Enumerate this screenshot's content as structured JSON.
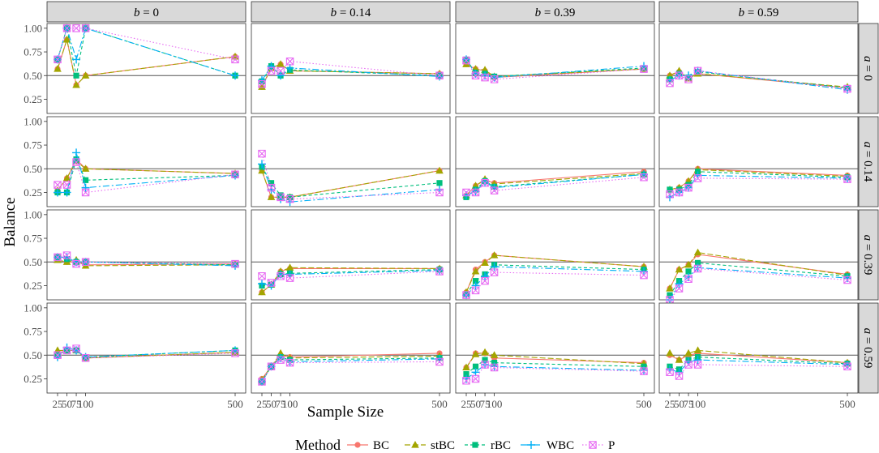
{
  "chart_data": {
    "type": "line",
    "title": "",
    "xlabel": "Sample Size",
    "ylabel": "Balance",
    "x": [
      25,
      50,
      75,
      100,
      500
    ],
    "x_tick_labels": [
      "25",
      "50",
      "75",
      "100",
      "500"
    ],
    "ylim": [
      0.1,
      1.05
    ],
    "y_ticks": [
      0.25,
      0.5,
      0.75,
      1.0
    ],
    "y_tick_labels": [
      "0.25",
      "0.50",
      "0.75",
      "1.00"
    ],
    "reference_line": 0.5,
    "grid": false,
    "col_facet_var": "b",
    "row_facet_var": "a",
    "col_labels": [
      "b = 0",
      "b = 0.14",
      "b = 0.39",
      "b = 0.59"
    ],
    "row_labels": [
      "a = 0",
      "a = 0.14",
      "a = 0.39",
      "a = 0.59"
    ],
    "legend": {
      "title": "Method",
      "position": "bottom",
      "entries": [
        "BC",
        "stBC",
        "rBC",
        "WBC",
        "P"
      ]
    },
    "methods": [
      {
        "name": "BC",
        "color": "#F8766D",
        "shape": "circle",
        "dash": ""
      },
      {
        "name": "stBC",
        "color": "#A3A500",
        "shape": "triangle",
        "dash": "7,3"
      },
      {
        "name": "rBC",
        "color": "#00BF7D",
        "shape": "square",
        "dash": "4,3"
      },
      {
        "name": "WBC",
        "color": "#00B0F6",
        "shape": "plus",
        "dash": "8,3,2,3"
      },
      {
        "name": "P",
        "color": "#E76BF3",
        "shape": "square-x",
        "dash": "1.5,2.5"
      }
    ],
    "panels": [
      [
        {
          "BC": [
            0.57,
            0.88,
            0.4,
            0.5,
            0.7
          ],
          "stBC": [
            0.57,
            0.88,
            0.4,
            0.5,
            0.7
          ],
          "rBC": [
            0.67,
            1.0,
            0.5,
            1.0,
            0.5
          ],
          "WBC": [
            0.67,
            1.0,
            0.67,
            1.0,
            0.5
          ],
          "P": [
            0.67,
            1.0,
            1.0,
            1.0,
            0.67
          ]
        },
        {
          "BC": [
            0.38,
            0.58,
            0.62,
            0.55,
            0.52
          ],
          "stBC": [
            0.38,
            0.58,
            0.62,
            0.55,
            0.52
          ],
          "rBC": [
            0.44,
            0.6,
            0.5,
            0.56,
            0.5
          ],
          "WBC": [
            0.45,
            0.6,
            0.5,
            0.58,
            0.49
          ],
          "P": [
            0.41,
            0.55,
            0.55,
            0.65,
            0.5
          ]
        },
        {
          "BC": [
            0.62,
            0.57,
            0.55,
            0.48,
            0.57
          ],
          "stBC": [
            0.62,
            0.57,
            0.56,
            0.49,
            0.57
          ],
          "rBC": [
            0.67,
            0.53,
            0.52,
            0.49,
            0.58
          ],
          "WBC": [
            0.67,
            0.52,
            0.5,
            0.48,
            0.6
          ],
          "P": [
            0.66,
            0.5,
            0.48,
            0.46,
            0.57
          ]
        },
        {
          "BC": [
            0.5,
            0.54,
            0.47,
            0.52,
            0.37
          ],
          "stBC": [
            0.5,
            0.55,
            0.47,
            0.52,
            0.38
          ],
          "rBC": [
            0.46,
            0.52,
            0.48,
            0.54,
            0.37
          ],
          "WBC": [
            0.45,
            0.5,
            0.5,
            0.55,
            0.35
          ],
          "P": [
            0.42,
            0.5,
            0.46,
            0.55,
            0.36
          ]
        }
      ],
      [
        {
          "BC": [
            0.27,
            0.4,
            0.6,
            0.5,
            0.45
          ],
          "stBC": [
            0.27,
            0.4,
            0.58,
            0.5,
            0.45
          ],
          "rBC": [
            0.25,
            0.25,
            0.6,
            0.38,
            0.43
          ],
          "WBC": [
            0.25,
            0.25,
            0.67,
            0.3,
            0.43
          ],
          "P": [
            0.33,
            0.33,
            0.57,
            0.25,
            0.44
          ]
        },
        {
          "BC": [
            0.48,
            0.2,
            0.2,
            0.2,
            0.48
          ],
          "stBC": [
            0.48,
            0.2,
            0.2,
            0.2,
            0.48
          ],
          "rBC": [
            0.52,
            0.35,
            0.22,
            0.2,
            0.35
          ],
          "WBC": [
            0.55,
            0.28,
            0.18,
            0.15,
            0.28
          ],
          "P": [
            0.66,
            0.3,
            0.2,
            0.18,
            0.25
          ]
        },
        {
          "BC": [
            0.22,
            0.32,
            0.38,
            0.35,
            0.47
          ],
          "stBC": [
            0.22,
            0.32,
            0.39,
            0.34,
            0.45
          ],
          "rBC": [
            0.2,
            0.28,
            0.37,
            0.31,
            0.44
          ],
          "WBC": [
            0.22,
            0.26,
            0.36,
            0.3,
            0.44
          ],
          "P": [
            0.25,
            0.25,
            0.35,
            0.27,
            0.41
          ]
        },
        {
          "BC": [
            0.28,
            0.3,
            0.37,
            0.5,
            0.43
          ],
          "stBC": [
            0.28,
            0.3,
            0.37,
            0.49,
            0.42
          ],
          "rBC": [
            0.28,
            0.28,
            0.33,
            0.47,
            0.41
          ],
          "WBC": [
            0.2,
            0.25,
            0.3,
            0.43,
            0.4
          ],
          "P": [
            0.23,
            0.25,
            0.3,
            0.4,
            0.39
          ]
        }
      ],
      [
        {
          "BC": [
            0.52,
            0.5,
            0.5,
            0.47,
            0.48
          ],
          "stBC": [
            0.52,
            0.5,
            0.52,
            0.46,
            0.47
          ],
          "rBC": [
            0.55,
            0.53,
            0.5,
            0.5,
            0.47
          ],
          "WBC": [
            0.55,
            0.55,
            0.5,
            0.5,
            0.46
          ],
          "P": [
            0.55,
            0.57,
            0.48,
            0.5,
            0.48
          ]
        },
        {
          "BC": [
            0.18,
            0.26,
            0.4,
            0.43,
            0.43
          ],
          "stBC": [
            0.18,
            0.26,
            0.4,
            0.44,
            0.43
          ],
          "rBC": [
            0.25,
            0.26,
            0.37,
            0.38,
            0.42
          ],
          "WBC": [
            0.27,
            0.25,
            0.37,
            0.37,
            0.41
          ],
          "P": [
            0.35,
            0.28,
            0.35,
            0.33,
            0.4
          ]
        },
        {
          "BC": [
            0.18,
            0.42,
            0.5,
            0.57,
            0.45
          ],
          "stBC": [
            0.18,
            0.4,
            0.49,
            0.57,
            0.45
          ],
          "rBC": [
            0.16,
            0.3,
            0.37,
            0.47,
            0.42
          ],
          "WBC": [
            0.15,
            0.25,
            0.35,
            0.45,
            0.4
          ],
          "P": [
            0.15,
            0.2,
            0.3,
            0.39,
            0.36
          ]
        },
        {
          "BC": [
            0.22,
            0.42,
            0.47,
            0.58,
            0.37
          ],
          "stBC": [
            0.22,
            0.42,
            0.47,
            0.6,
            0.36
          ],
          "rBC": [
            0.15,
            0.3,
            0.4,
            0.49,
            0.35
          ],
          "WBC": [
            0.1,
            0.27,
            0.34,
            0.44,
            0.33
          ],
          "P": [
            0.1,
            0.22,
            0.32,
            0.43,
            0.31
          ]
        }
      ],
      [
        {
          "BC": [
            0.52,
            0.55,
            0.55,
            0.47,
            0.53
          ],
          "stBC": [
            0.55,
            0.55,
            0.55,
            0.47,
            0.53
          ],
          "rBC": [
            0.5,
            0.55,
            0.55,
            0.48,
            0.55
          ],
          "WBC": [
            0.48,
            0.58,
            0.55,
            0.48,
            0.55
          ],
          "P": [
            0.5,
            0.55,
            0.57,
            0.47,
            0.52
          ]
        },
        {
          "BC": [
            0.25,
            0.38,
            0.5,
            0.48,
            0.52
          ],
          "stBC": [
            0.24,
            0.38,
            0.52,
            0.47,
            0.49
          ],
          "rBC": [
            0.22,
            0.38,
            0.48,
            0.45,
            0.47
          ],
          "WBC": [
            0.22,
            0.38,
            0.47,
            0.43,
            0.46
          ],
          "P": [
            0.22,
            0.38,
            0.45,
            0.42,
            0.43
          ]
        },
        {
          "BC": [
            0.37,
            0.52,
            0.52,
            0.47,
            0.42
          ],
          "stBC": [
            0.37,
            0.51,
            0.53,
            0.5,
            0.41
          ],
          "rBC": [
            0.3,
            0.38,
            0.45,
            0.42,
            0.38
          ],
          "WBC": [
            0.25,
            0.32,
            0.4,
            0.38,
            0.34
          ],
          "P": [
            0.23,
            0.25,
            0.4,
            0.37,
            0.33
          ]
        },
        {
          "BC": [
            0.5,
            0.45,
            0.5,
            0.52,
            0.42
          ],
          "stBC": [
            0.52,
            0.45,
            0.52,
            0.55,
            0.42
          ],
          "rBC": [
            0.38,
            0.35,
            0.45,
            0.48,
            0.41
          ],
          "WBC": [
            0.35,
            0.32,
            0.43,
            0.45,
            0.4
          ],
          "P": [
            0.32,
            0.28,
            0.4,
            0.4,
            0.38
          ]
        }
      ]
    ]
  }
}
